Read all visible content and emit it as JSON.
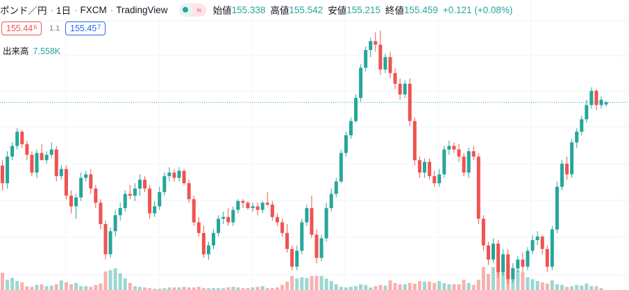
{
  "header": {
    "symbol": "ポンド／円",
    "interval": "1日",
    "exchange": "FXCM",
    "source": "TradingView",
    "icons": [
      "status-dot-icon",
      "wave-icon"
    ]
  },
  "ohlc": {
    "open_label": "始値",
    "open": "155.338",
    "high_label": "高値",
    "high": "155.542",
    "low_label": "安値",
    "low": "155.215",
    "close_label": "終値",
    "close": "155.459",
    "change": "+0.121 (+0.08%)"
  },
  "trade": {
    "sell_main": "155.44",
    "sell_sup": "6",
    "spread": "1.1",
    "buy_main": "155.45",
    "buy_sup": "7"
  },
  "volume": {
    "label": "出来高",
    "value": "7.558K"
  },
  "colors": {
    "up": "#26a69a",
    "down": "#ef5350",
    "up_volume": "#26a69a",
    "down_volume": "#ef5350",
    "current_price_line": "#26a69a"
  },
  "chart_data": {
    "type": "candlestick",
    "title": "",
    "current_price": 155.459,
    "series": [
      {
        "name": "price",
        "ohlc": [
          [
            151.9,
            152.2,
            150.5,
            150.9
          ],
          [
            150.9,
            152.7,
            150.6,
            152.4
          ],
          [
            152.4,
            153.2,
            152.2,
            153.0
          ],
          [
            153.0,
            154.0,
            152.8,
            153.8
          ],
          [
            153.8,
            153.9,
            152.9,
            153.1
          ],
          [
            153.1,
            153.3,
            152.2,
            152.5
          ],
          [
            152.5,
            152.7,
            151.3,
            151.5
          ],
          [
            151.5,
            152.8,
            151.2,
            152.6
          ],
          [
            152.6,
            153.1,
            152.2,
            152.2
          ],
          [
            152.2,
            152.7,
            152.0,
            152.5
          ],
          [
            152.5,
            153.2,
            152.3,
            152.8
          ],
          [
            152.8,
            153.0,
            151.0,
            151.3
          ],
          [
            151.3,
            151.9,
            151.1,
            151.7
          ],
          [
            151.7,
            151.9,
            150.0,
            150.2
          ],
          [
            150.2,
            150.5,
            149.2,
            149.6
          ],
          [
            149.6,
            150.3,
            148.9,
            150.1
          ],
          [
            150.1,
            151.5,
            149.9,
            151.2
          ],
          [
            151.2,
            151.6,
            151.0,
            151.4
          ],
          [
            151.4,
            151.7,
            150.3,
            150.6
          ],
          [
            150.6,
            150.8,
            149.5,
            149.8
          ],
          [
            149.8,
            150.0,
            148.3,
            148.6
          ],
          [
            148.6,
            148.8,
            146.6,
            146.9
          ],
          [
            146.9,
            148.4,
            146.7,
            148.2
          ],
          [
            148.2,
            149.4,
            147.9,
            149.1
          ],
          [
            149.1,
            149.8,
            148.8,
            149.5
          ],
          [
            149.5,
            150.5,
            149.3,
            150.3
          ],
          [
            150.3,
            150.8,
            150.0,
            150.2
          ],
          [
            150.2,
            150.9,
            149.9,
            150.6
          ],
          [
            150.6,
            151.4,
            150.2,
            151.1
          ],
          [
            151.1,
            151.3,
            150.4,
            150.6
          ],
          [
            150.6,
            150.8,
            148.9,
            149.2
          ],
          [
            149.2,
            149.9,
            149.0,
            149.6
          ],
          [
            149.6,
            150.7,
            149.4,
            150.4
          ],
          [
            150.4,
            151.5,
            150.2,
            151.3
          ],
          [
            151.3,
            151.8,
            151.0,
            151.5
          ],
          [
            151.5,
            151.7,
            151.0,
            151.2
          ],
          [
            151.2,
            151.8,
            151.0,
            151.6
          ],
          [
            151.6,
            151.7,
            150.8,
            150.9
          ],
          [
            150.9,
            151.1,
            149.8,
            150.0
          ],
          [
            150.0,
            150.2,
            148.5,
            148.7
          ],
          [
            148.7,
            149.0,
            147.9,
            148.1
          ],
          [
            148.1,
            148.5,
            146.7,
            146.9
          ],
          [
            146.9,
            147.6,
            146.6,
            147.4
          ],
          [
            147.4,
            148.3,
            147.2,
            148.1
          ],
          [
            148.1,
            149.1,
            147.9,
            148.9
          ],
          [
            148.9,
            149.3,
            148.6,
            149.0
          ],
          [
            149.0,
            149.5,
            148.5,
            148.7
          ],
          [
            148.7,
            149.6,
            148.5,
            149.4
          ],
          [
            149.4,
            150.0,
            149.2,
            149.9
          ],
          [
            149.9,
            150.0,
            149.5,
            149.8
          ],
          [
            149.8,
            149.9,
            149.4,
            149.5
          ],
          [
            149.5,
            149.8,
            149.3,
            149.6
          ],
          [
            149.6,
            149.8,
            149.1,
            149.4
          ],
          [
            149.4,
            149.9,
            149.2,
            149.8
          ],
          [
            149.8,
            150.4,
            149.6,
            149.7
          ],
          [
            149.7,
            149.9,
            148.8,
            149.0
          ],
          [
            149.0,
            149.2,
            148.5,
            148.7
          ],
          [
            148.7,
            148.9,
            147.9,
            148.1
          ],
          [
            148.1,
            148.6,
            147.0,
            147.2
          ],
          [
            147.2,
            147.4,
            146.0,
            146.2
          ],
          [
            146.2,
            147.4,
            146.0,
            147.1
          ],
          [
            147.1,
            148.9,
            146.9,
            148.7
          ],
          [
            148.7,
            149.7,
            148.5,
            149.5
          ],
          [
            149.5,
            150.2,
            147.8,
            148.0
          ],
          [
            148.0,
            148.3,
            146.4,
            146.7
          ],
          [
            146.7,
            148.0,
            146.5,
            147.8
          ],
          [
            147.8,
            149.8,
            147.6,
            149.5
          ],
          [
            149.5,
            150.6,
            149.3,
            150.3
          ],
          [
            150.3,
            151.2,
            150.1,
            151.0
          ],
          [
            151.0,
            152.8,
            150.9,
            152.6
          ],
          [
            152.6,
            153.8,
            152.4,
            153.6
          ],
          [
            153.6,
            154.6,
            153.4,
            154.4
          ],
          [
            154.4,
            155.9,
            154.3,
            155.7
          ],
          [
            155.7,
            157.6,
            155.5,
            157.4
          ],
          [
            157.4,
            158.6,
            157.2,
            158.4
          ],
          [
            158.4,
            159.1,
            158.0,
            158.9
          ],
          [
            158.9,
            159.4,
            158.3,
            158.7
          ],
          [
            158.7,
            159.5,
            157.0,
            157.3
          ],
          [
            157.3,
            158.2,
            157.1,
            158.0
          ],
          [
            158.0,
            158.3,
            156.8,
            157.1
          ],
          [
            157.1,
            157.4,
            156.2,
            156.5
          ],
          [
            156.5,
            156.8,
            155.6,
            155.9
          ],
          [
            155.9,
            156.7,
            155.7,
            156.5
          ],
          [
            156.5,
            156.8,
            154.1,
            154.4
          ],
          [
            154.4,
            154.6,
            151.9,
            152.2
          ],
          [
            152.2,
            152.4,
            151.2,
            151.5
          ],
          [
            151.5,
            152.3,
            151.2,
            152.1
          ],
          [
            152.1,
            152.3,
            151.1,
            151.3
          ],
          [
            151.3,
            151.6,
            150.7,
            150.9
          ],
          [
            150.9,
            151.7,
            150.7,
            151.4
          ],
          [
            151.4,
            153.0,
            151.2,
            152.8
          ],
          [
            152.8,
            153.3,
            152.5,
            153.0
          ],
          [
            153.0,
            153.2,
            152.6,
            152.8
          ],
          [
            152.8,
            153.1,
            152.1,
            152.4
          ],
          [
            152.4,
            152.6,
            151.3,
            151.5
          ],
          [
            151.5,
            152.9,
            151.2,
            152.7
          ],
          [
            152.7,
            153.0,
            152.2,
            152.4
          ],
          [
            152.4,
            152.6,
            148.6,
            148.9
          ],
          [
            148.9,
            149.1,
            147.1,
            147.4
          ],
          [
            147.4,
            147.6,
            146.3,
            146.6
          ],
          [
            146.6,
            147.8,
            146.4,
            147.5
          ],
          [
            147.5,
            147.7,
            145.6,
            145.9
          ],
          [
            145.9,
            147.2,
            145.7,
            146.9
          ],
          [
            146.9,
            147.2,
            145.2,
            145.5
          ],
          [
            145.5,
            146.4,
            145.3,
            146.1
          ],
          [
            146.1,
            146.8,
            145.9,
            146.6
          ],
          [
            146.6,
            147.0,
            145.9,
            146.2
          ],
          [
            146.2,
            147.3,
            146.0,
            147.1
          ],
          [
            147.1,
            148.0,
            146.9,
            147.7
          ],
          [
            147.7,
            148.2,
            147.4,
            147.9
          ],
          [
            147.9,
            148.0,
            146.9,
            147.2
          ],
          [
            147.2,
            147.4,
            145.9,
            146.2
          ],
          [
            146.2,
            148.5,
            146.0,
            148.3
          ],
          [
            148.3,
            151.0,
            148.1,
            150.7
          ],
          [
            150.7,
            152.2,
            150.5,
            152.0
          ],
          [
            152.0,
            152.4,
            151.1,
            151.4
          ],
          [
            151.4,
            153.4,
            151.2,
            153.2
          ],
          [
            153.2,
            154.0,
            152.9,
            153.8
          ],
          [
            153.8,
            154.7,
            153.6,
            154.5
          ],
          [
            154.5,
            155.6,
            154.3,
            155.3
          ],
          [
            155.3,
            156.3,
            155.1,
            156.1
          ],
          [
            156.1,
            156.2,
            155.0,
            155.3
          ],
          [
            155.3,
            155.8,
            155.1,
            155.6
          ],
          [
            155.338,
            155.542,
            155.215,
            155.459
          ]
        ]
      },
      {
        "name": "volume",
        "values": [
          2.7,
          1.6,
          1.9,
          1.4,
          1.2,
          0.6,
          0.5,
          0.8,
          0.9,
          0.6,
          0.7,
          0.9,
          1.5,
          1.2,
          0.9,
          1.1,
          0.6,
          0.6,
          0.5,
          0.8,
          1.0,
          2.9,
          3.1,
          3.4,
          2.6,
          1.8,
          1.1,
          0.6,
          0.5,
          0.4,
          0.3,
          0.2,
          0.2,
          0.3,
          0.4,
          0.4,
          0.4,
          0.5,
          0.4,
          0.4,
          0.5,
          0.3,
          0.3,
          0.3,
          0.3,
          0.3,
          0.4,
          0.5,
          0.4,
          0.3,
          0.3,
          0.4,
          0.5,
          0.6,
          0.3,
          0.3,
          0.4,
          0.8,
          1.3,
          2.2,
          1.8,
          2.0,
          1.9,
          2.2,
          2.2,
          2.2,
          1.8,
          1.4,
          0.9,
          0.5,
          0.4,
          0.5,
          0.6,
          0.9,
          0.8,
          0.4,
          0.6,
          0.8,
          0.7,
          1.5,
          1.1,
          0.9,
          0.9,
          1.1,
          1.0,
          1.4,
          1.3,
          1.3,
          1.1,
          1.4,
          1.1,
          0.9,
          0.9,
          0.9,
          1.6,
          1.1,
          0.8,
          1.6,
          3.6,
          2.5,
          3.6,
          3.6,
          4.6,
          4.0,
          3.5,
          3.1,
          2.8,
          2.0,
          1.7,
          1.4,
          1.2,
          1.0,
          1.5,
          0.9,
          0.8,
          0.5,
          0.6,
          0.8,
          0.7,
          1.0,
          0.6,
          0.6,
          0.3
        ]
      }
    ],
    "legend": "top-left",
    "grid": true
  }
}
